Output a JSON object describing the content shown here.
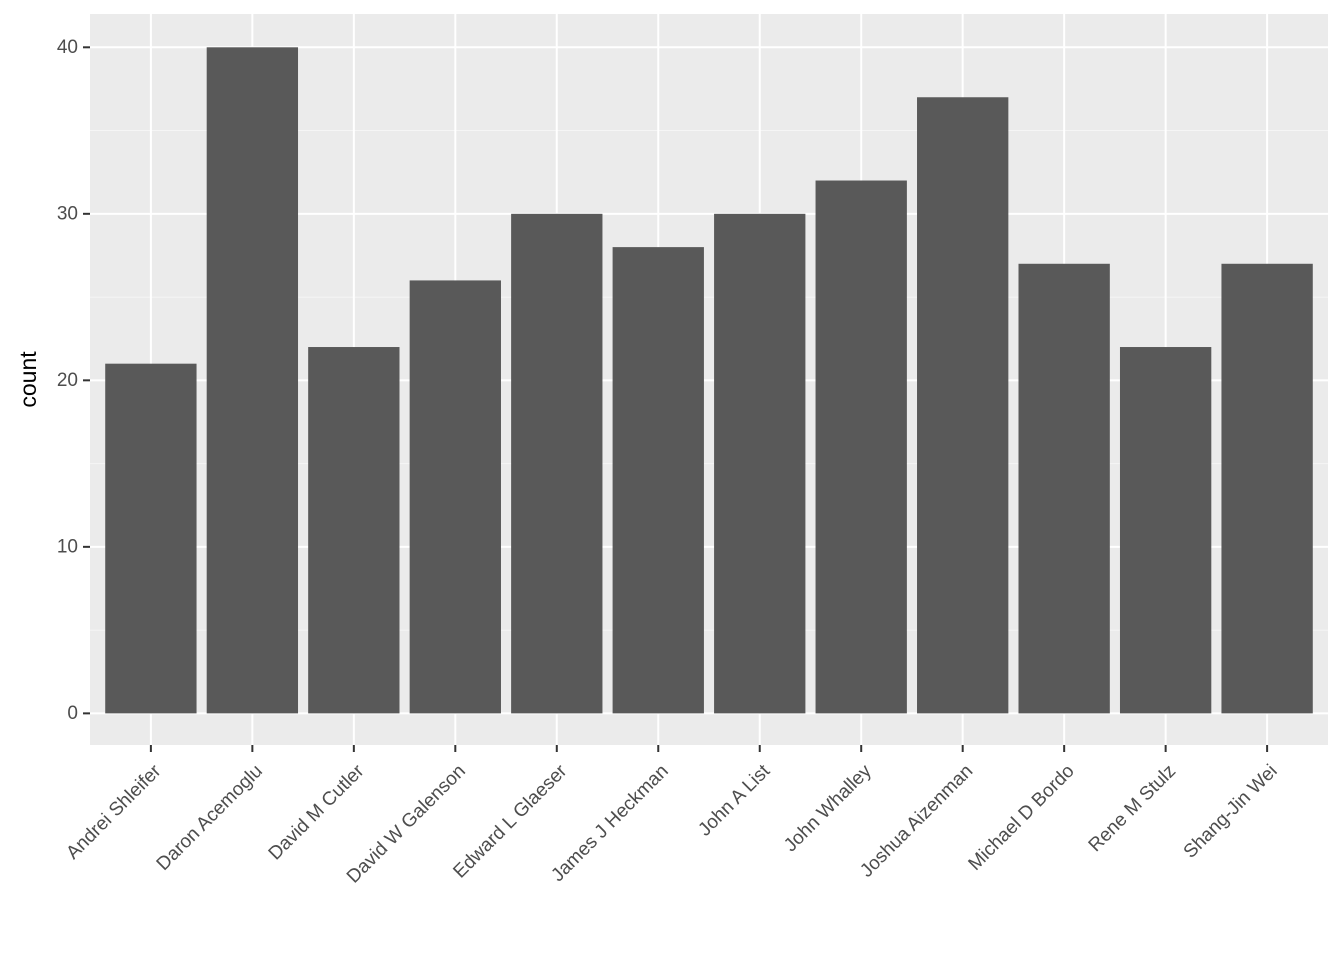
{
  "chart_data": {
    "type": "bar",
    "title": "",
    "xlabel": "",
    "ylabel": "count",
    "categories": [
      "Andrei Shleifer",
      "Daron Acemoglu",
      "David M Cutler",
      "David W Galenson",
      "Edward L Glaeser",
      "James J Heckman",
      "John A List",
      "John Whalley",
      "Joshua Aizenman",
      "Michael D Bordo",
      "Rene M Stulz",
      "Shang-Jin Wei"
    ],
    "values": [
      21,
      40,
      22,
      26,
      30,
      28,
      30,
      32,
      37,
      27,
      22,
      27
    ],
    "ylim": [
      -1.9,
      42
    ],
    "yticks": [
      0,
      10,
      20,
      30,
      40
    ],
    "grid": true,
    "legend": "none",
    "colors": {
      "bar": "#595959",
      "panel": "#ebebeb",
      "grid_major": "#ffffff",
      "tick_text": "#4d4d4d",
      "tick_mark": "#333333",
      "axis_title": "#000000"
    }
  }
}
